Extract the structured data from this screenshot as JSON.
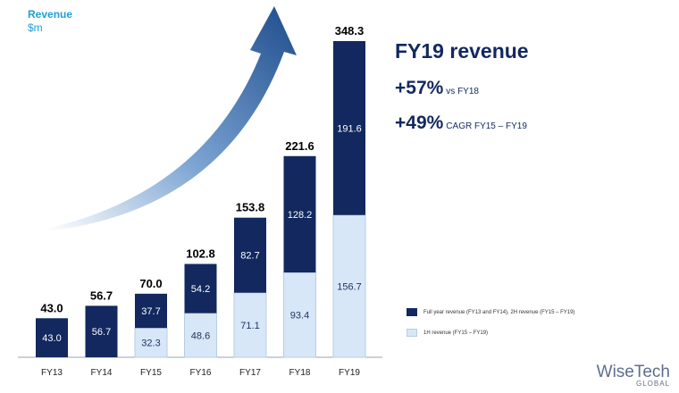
{
  "colors": {
    "dark_navy": "#12285f",
    "light_blue": "#d7e7f8",
    "accent_cyan": "#1e9fd8",
    "arrow_blue": "#1e4c8c"
  },
  "chart_data": {
    "type": "bar",
    "stacked": true,
    "ylabel": "Revenue",
    "yunit": "$m",
    "ylim": [
      0,
      348.3
    ],
    "categories": [
      "FY13",
      "FY14",
      "FY15",
      "FY16",
      "FY17",
      "FY18",
      "FY19"
    ],
    "series": [
      {
        "name": "1H revenue (FY15 – FY19)",
        "color": "#d7e7f8",
        "values": [
          null,
          null,
          32.3,
          48.6,
          71.1,
          93.4,
          156.7
        ]
      },
      {
        "name": "Full year revenue (FY13 and FY14), 2H revenue (FY15 – FY19)",
        "color": "#12285f",
        "values": [
          43.0,
          56.7,
          37.7,
          54.2,
          82.7,
          128.2,
          191.6
        ]
      }
    ],
    "totals": [
      43.0,
      56.7,
      70.0,
      102.8,
      153.8,
      221.6,
      348.3
    ],
    "legend": "right",
    "grid": false
  },
  "panel": {
    "headline": "FY19 revenue",
    "stat1": {
      "value": "+57%",
      "caption": "vs FY18"
    },
    "stat2": {
      "value": "+49%",
      "caption": "CAGR FY15 – FY19"
    }
  },
  "logo": {
    "name": "WiseTech",
    "sub": "GLOBAL"
  }
}
